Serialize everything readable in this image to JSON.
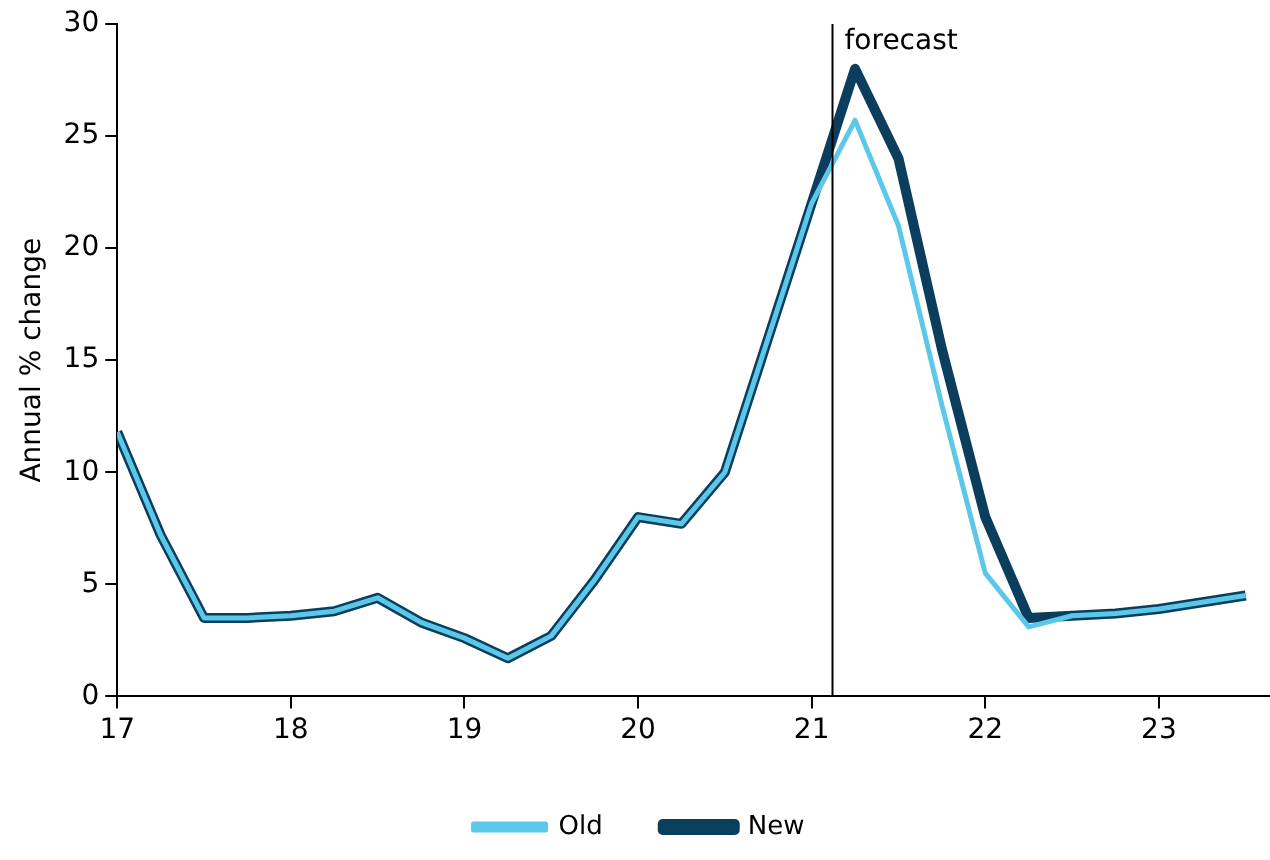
{
  "chart_data": {
    "type": "line",
    "ylabel": "Annual % change",
    "x": [
      17,
      17.25,
      17.5,
      17.75,
      18,
      18.25,
      18.5,
      18.75,
      19,
      19.25,
      19.5,
      19.75,
      20,
      20.25,
      20.5,
      20.75,
      21,
      21.25,
      21.5,
      21.75,
      22,
      22.25,
      22.5,
      22.75,
      23,
      23.25,
      23.5
    ],
    "series": [
      {
        "name": "New",
        "color": "#0b3d5c",
        "values": [
          11.8,
          7.2,
          3.5,
          3.5,
          3.6,
          3.8,
          4.4,
          3.3,
          2.6,
          1.7,
          2.7,
          5.2,
          8.0,
          7.7,
          10.0,
          16.0,
          22.0,
          28.0,
          24.0,
          15.5,
          8.0,
          3.5,
          3.6,
          3.7,
          3.9,
          4.2,
          4.5
        ]
      },
      {
        "name": "Old",
        "color": "#5bc8ea",
        "values": [
          11.8,
          7.2,
          3.5,
          3.5,
          3.6,
          3.8,
          4.4,
          3.3,
          2.6,
          1.7,
          2.7,
          5.2,
          8.0,
          7.7,
          10.0,
          16.0,
          22.0,
          25.7,
          21.0,
          13.0,
          5.5,
          3.1,
          3.6,
          3.7,
          3.9,
          4.2,
          4.5
        ]
      }
    ],
    "xlim": [
      17,
      23.64
    ],
    "xticks": [
      17,
      18,
      19,
      20,
      21,
      22,
      23
    ],
    "ylim": [
      0,
      30
    ],
    "yticks": [
      0,
      5,
      10,
      15,
      20,
      25,
      30
    ],
    "ref_lines": [
      {
        "axis": "x",
        "value": 21.12,
        "label": "forecast",
        "color": "#000000"
      }
    ],
    "grid": false,
    "legend": "bottom",
    "marker": "none",
    "line_style": "solid"
  }
}
